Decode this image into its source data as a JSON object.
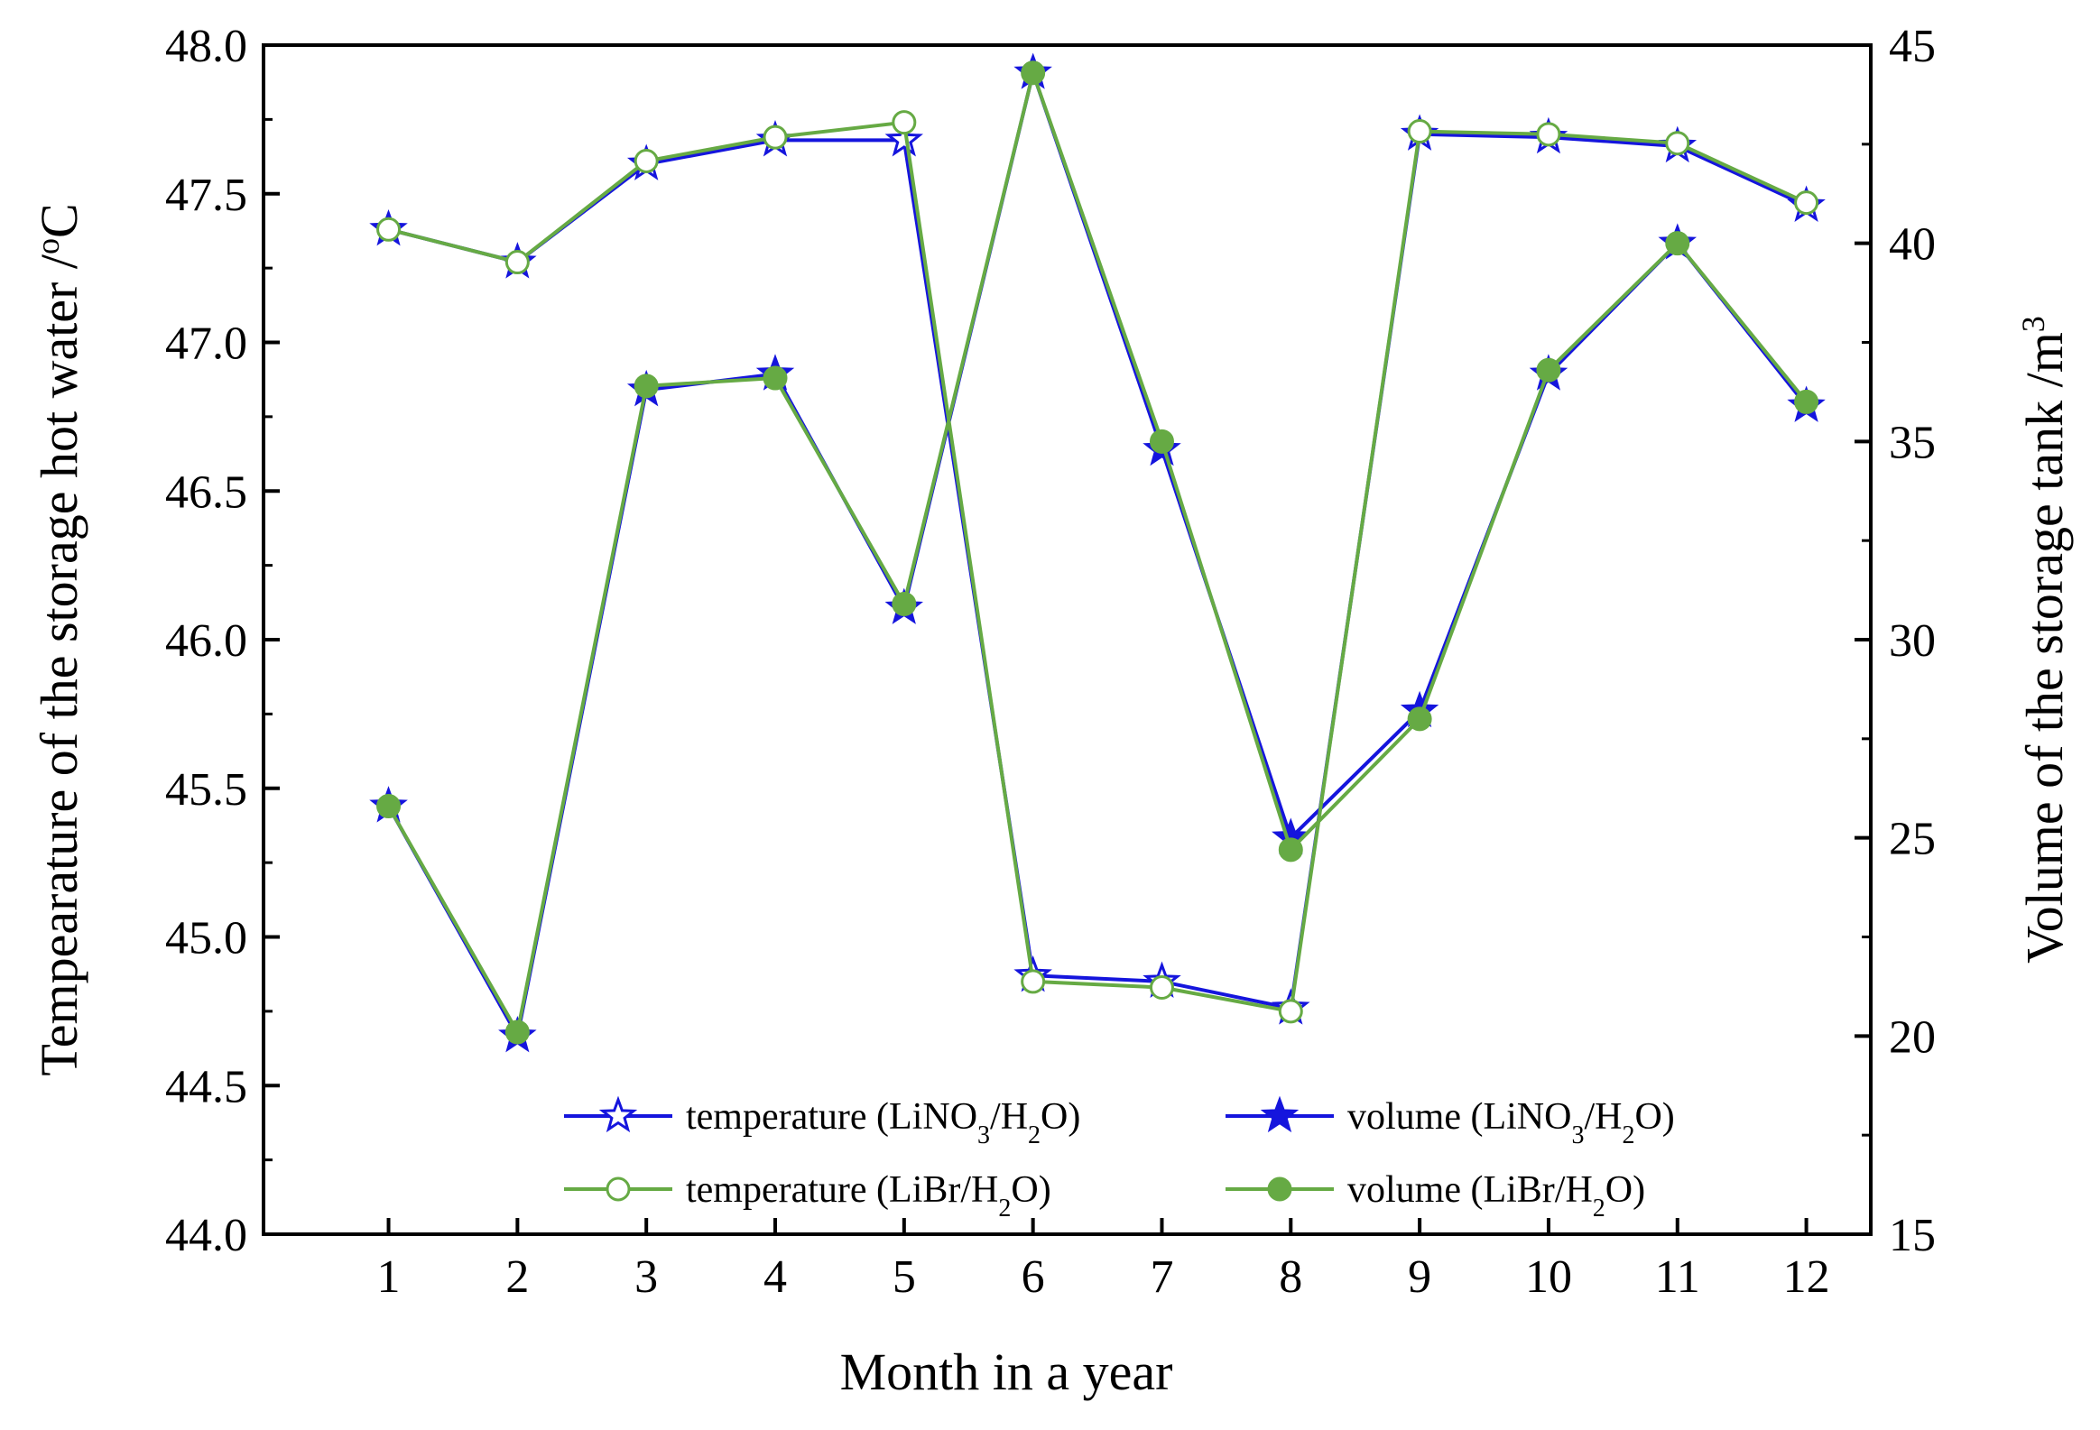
{
  "chart_data": {
    "type": "line",
    "title": "",
    "xlabel": "Month in a year",
    "ylabel_left": "Tempearature of the storage hot water /",
    "ylabel_left_unit_sup": "o",
    "ylabel_left_unit": "C",
    "ylabel_right": "Volume of the storage tank /m",
    "ylabel_right_sup": "3",
    "x": [
      1,
      2,
      3,
      4,
      5,
      6,
      7,
      8,
      9,
      10,
      11,
      12
    ],
    "xlim": [
      0.03,
      12.5
    ],
    "ylim_left": [
      44.0,
      48.0
    ],
    "ylim_right": [
      15,
      45
    ],
    "x_ticks": [
      "1",
      "2",
      "3",
      "4",
      "5",
      "6",
      "7",
      "8",
      "9",
      "10",
      "11",
      "12"
    ],
    "y_ticks_left": [
      "44.0",
      "44.5",
      "45.0",
      "45.5",
      "46.0",
      "46.5",
      "47.0",
      "47.5",
      "48.0"
    ],
    "y_ticks_right": [
      "15",
      "20",
      "25",
      "30",
      "35",
      "40",
      "45"
    ],
    "grid": false,
    "legend_position": "bottom-center",
    "colors": {
      "lino3": "#1515dd",
      "libr": "#66aa44"
    },
    "series": [
      {
        "name": "temperature (LiNO3/H2O)",
        "label_parts": [
          "temperature (LiNO",
          "3",
          "/H",
          "2",
          "O)"
        ],
        "axis": "left",
        "marker": "star-open",
        "color": "#1515dd",
        "values": [
          47.38,
          47.27,
          47.6,
          47.68,
          47.68,
          44.87,
          44.85,
          44.76,
          47.7,
          47.69,
          47.66,
          47.46
        ]
      },
      {
        "name": "volume (LiNO3/H2O)",
        "label_parts": [
          "volume (LiNO",
          "3",
          "/H",
          "2",
          "O)"
        ],
        "axis": "right",
        "marker": "star-filled",
        "color": "#1515dd",
        "values": [
          25.8,
          20.0,
          36.3,
          36.7,
          30.8,
          44.3,
          34.8,
          25.0,
          28.2,
          36.7,
          40.0,
          35.9
        ]
      },
      {
        "name": "temperature (LiBr/H2O)",
        "label_parts": [
          "temperature (LiBr/H",
          "2",
          "O)"
        ],
        "axis": "left",
        "marker": "circle-open",
        "color": "#66aa44",
        "values": [
          47.38,
          47.27,
          47.61,
          47.69,
          47.74,
          44.85,
          44.83,
          44.75,
          47.71,
          47.7,
          47.67,
          47.47
        ]
      },
      {
        "name": "volume (LiBr/H2O)",
        "label_parts": [
          "volume (LiBr/H",
          "2",
          "O)"
        ],
        "axis": "right",
        "marker": "circle-filled",
        "color": "#66aa44",
        "values": [
          25.8,
          20.1,
          36.4,
          36.6,
          30.9,
          44.3,
          35.0,
          24.7,
          28.0,
          36.8,
          40.0,
          36.0
        ]
      }
    ]
  }
}
